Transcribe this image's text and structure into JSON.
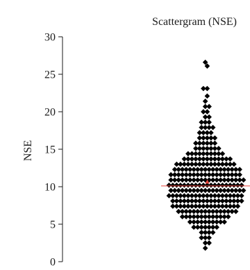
{
  "chart_data": {
    "type": "scatter",
    "title": "Scattergram (NSE)",
    "xlabel": "",
    "ylabel": "NSE",
    "ylim": [
      0,
      30
    ],
    "yticks": [
      0,
      5,
      10,
      15,
      20,
      25,
      30
    ],
    "grid": false,
    "legend": "none",
    "mean_line": 10.1,
    "mean_marker": 10.7,
    "summary": {
      "mean": 10.1,
      "min": 1.8,
      "max": 26.6
    },
    "bins": [
      {
        "y": 1.8,
        "count": 1
      },
      {
        "y": 2.5,
        "count": 2
      },
      {
        "y": 3.2,
        "count": 3
      },
      {
        "y": 3.9,
        "count": 4
      },
      {
        "y": 4.6,
        "count": 7
      },
      {
        "y": 5.3,
        "count": 10
      },
      {
        "y": 6.0,
        "count": 13
      },
      {
        "y": 6.7,
        "count": 16
      },
      {
        "y": 7.4,
        "count": 18
      },
      {
        "y": 8.1,
        "count": 19
      },
      {
        "y": 8.8,
        "count": 20
      },
      {
        "y": 9.5,
        "count": 20
      },
      {
        "y": 10.2,
        "count": 20
      },
      {
        "y": 10.9,
        "count": 20
      },
      {
        "y": 11.6,
        "count": 19
      },
      {
        "y": 12.3,
        "count": 18
      },
      {
        "y": 13.0,
        "count": 16
      },
      {
        "y": 13.7,
        "count": 13
      },
      {
        "y": 14.4,
        "count": 10
      },
      {
        "y": 15.1,
        "count": 7
      },
      {
        "y": 15.8,
        "count": 6
      },
      {
        "y": 16.5,
        "count": 5
      },
      {
        "y": 17.2,
        "count": 4
      },
      {
        "y": 17.9,
        "count": 4
      },
      {
        "y": 18.6,
        "count": 3
      },
      {
        "y": 19.3,
        "count": 2
      },
      {
        "y": 20.0,
        "count": 2
      },
      {
        "y": 20.7,
        "count": 2
      },
      {
        "y": 21.4,
        "count": 1
      },
      {
        "y": 22.1,
        "count": 1
      },
      {
        "y": 23.1,
        "count": 2
      },
      {
        "y": 26.1,
        "count": 1
      },
      {
        "y": 26.6,
        "count": 1
      }
    ],
    "colors": {
      "points": "#000000",
      "mean_line": "#e8453c",
      "axis": "#1a1a1a"
    }
  }
}
